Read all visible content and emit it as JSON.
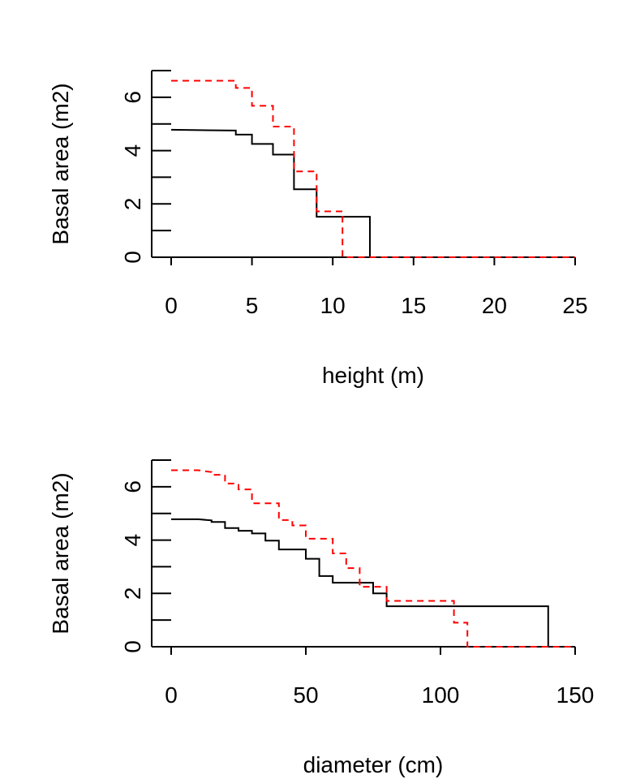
{
  "chart_data": [
    {
      "type": "line",
      "step": true,
      "xlabel": "height (m)",
      "ylabel": "Basal area (m2)",
      "xlim": [
        0,
        25
      ],
      "ylim": [
        0,
        7
      ],
      "xticks": [
        0,
        5,
        10,
        15,
        20,
        25
      ],
      "yticks": [
        0,
        2,
        4,
        6
      ],
      "yminor": [
        1,
        3,
        5,
        7
      ],
      "series": [
        {
          "color": "#000000",
          "linestyle": "solid",
          "points": [
            [
              0,
              4.78
            ],
            [
              4,
              4.75
            ],
            [
              4,
              4.6
            ],
            [
              5,
              4.6
            ],
            [
              5,
              4.25
            ],
            [
              6.3,
              4.25
            ],
            [
              6.3,
              3.85
            ],
            [
              7.6,
              3.85
            ],
            [
              7.6,
              2.55
            ],
            [
              9,
              2.55
            ],
            [
              9,
              1.52
            ],
            [
              12.3,
              1.52
            ],
            [
              12.3,
              0
            ],
            [
              25,
              0
            ]
          ]
        },
        {
          "color": "#ff0000",
          "linestyle": "dashed",
          "points": [
            [
              0,
              6.62
            ],
            [
              4,
              6.62
            ],
            [
              4,
              6.35
            ],
            [
              5,
              6.35
            ],
            [
              5,
              5.68
            ],
            [
              6.3,
              5.68
            ],
            [
              6.3,
              4.9
            ],
            [
              7.6,
              4.9
            ],
            [
              7.6,
              3.22
            ],
            [
              9,
              3.22
            ],
            [
              9,
              1.72
            ],
            [
              10.6,
              1.72
            ],
            [
              10.6,
              0
            ],
            [
              25,
              0
            ]
          ]
        }
      ]
    },
    {
      "type": "line",
      "step": true,
      "xlabel": "diameter (cm)",
      "ylabel": "Basal area (m2)",
      "xlim": [
        0,
        150
      ],
      "ylim": [
        0,
        7
      ],
      "xticks": [
        0,
        50,
        100,
        150
      ],
      "yticks": [
        0,
        2,
        4,
        6
      ],
      "yminor": [
        1,
        3,
        5,
        7
      ],
      "series": [
        {
          "color": "#000000",
          "linestyle": "solid",
          "points": [
            [
              0,
              4.78
            ],
            [
              10,
              4.78
            ],
            [
              15,
              4.74
            ],
            [
              15,
              4.68
            ],
            [
              20,
              4.68
            ],
            [
              20,
              4.45
            ],
            [
              25,
              4.45
            ],
            [
              25,
              4.35
            ],
            [
              30,
              4.35
            ],
            [
              30,
              4.25
            ],
            [
              35,
              4.25
            ],
            [
              35,
              3.98
            ],
            [
              40,
              3.98
            ],
            [
              40,
              3.65
            ],
            [
              50,
              3.65
            ],
            [
              50,
              3.3
            ],
            [
              55,
              3.3
            ],
            [
              55,
              2.65
            ],
            [
              60,
              2.65
            ],
            [
              60,
              2.4
            ],
            [
              75,
              2.4
            ],
            [
              75,
              2.0
            ],
            [
              80,
              2.0
            ],
            [
              80,
              1.52
            ],
            [
              140,
              1.52
            ],
            [
              140,
              0
            ],
            [
              150,
              0
            ]
          ]
        },
        {
          "color": "#ff0000",
          "linestyle": "dashed",
          "points": [
            [
              0,
              6.62
            ],
            [
              10,
              6.62
            ],
            [
              15,
              6.55
            ],
            [
              15,
              6.45
            ],
            [
              20,
              6.45
            ],
            [
              20,
              6.12
            ],
            [
              25,
              6.12
            ],
            [
              25,
              5.9
            ],
            [
              30,
              5.9
            ],
            [
              30,
              5.38
            ],
            [
              40,
              5.38
            ],
            [
              40,
              4.75
            ],
            [
              45,
              4.75
            ],
            [
              45,
              4.55
            ],
            [
              50,
              4.55
            ],
            [
              50,
              4.05
            ],
            [
              60,
              4.05
            ],
            [
              60,
              3.5
            ],
            [
              65,
              3.5
            ],
            [
              65,
              2.95
            ],
            [
              70,
              2.95
            ],
            [
              70,
              2.25
            ],
            [
              80,
              2.25
            ],
            [
              80,
              1.72
            ],
            [
              105,
              1.72
            ],
            [
              105,
              0.9
            ],
            [
              110,
              0.9
            ],
            [
              110,
              0
            ],
            [
              150,
              0
            ]
          ]
        }
      ]
    }
  ]
}
